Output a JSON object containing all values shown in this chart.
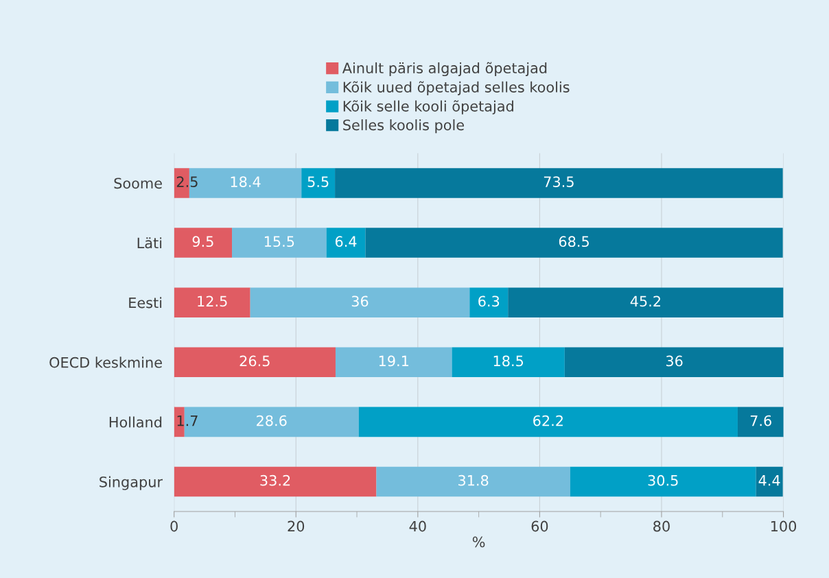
{
  "chart_data": {
    "type": "bar",
    "orientation": "horizontal",
    "stacked": true,
    "xlabel": "%",
    "categories": [
      "Soome",
      "Läti",
      "Eesti",
      "OECD keskmine",
      "Holland",
      "Singapur"
    ],
    "series": [
      {
        "name": "Ainult päris algajad õpetajad",
        "color": "#e05c63",
        "values": [
          2.5,
          9.5,
          12.5,
          26.5,
          1.7,
          33.2
        ]
      },
      {
        "name": "Kõik uued õpetajad selles koolis",
        "color": "#74bddc",
        "values": [
          18.4,
          15.5,
          36,
          19.1,
          28.6,
          31.8
        ]
      },
      {
        "name": "Kõik selle kooli õpetajad",
        "color": "#01a0c6",
        "values": [
          5.5,
          6.4,
          6.3,
          18.5,
          62.2,
          30.5
        ]
      },
      {
        "name": "Selles koolis pole",
        "color": "#06799c",
        "values": [
          73.5,
          68.5,
          45.2,
          36,
          7.6,
          4.4
        ]
      }
    ],
    "xlim": [
      0,
      100
    ],
    "xticks": [
      0,
      {
        "value": 10,
        "label": null
      },
      20,
      {
        "value": 30,
        "label": null
      },
      40,
      {
        "value": 50,
        "label": null
      },
      60,
      {
        "value": 70,
        "label": null
      },
      80,
      {
        "value": 90,
        "label": null
      },
      100
    ],
    "grid": "x",
    "legend": "top",
    "data_labels": true
  }
}
